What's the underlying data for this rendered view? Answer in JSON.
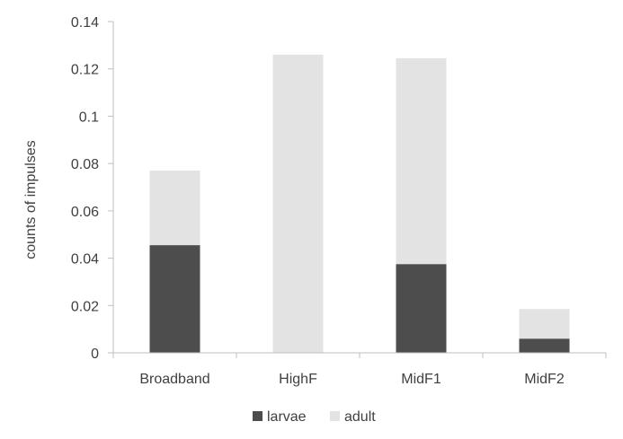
{
  "chart_data": {
    "type": "bar",
    "stacked": true,
    "categories": [
      "Broadband",
      "HighF",
      "MidF1",
      "MidF2"
    ],
    "series": [
      {
        "name": "larvae",
        "values": [
          0.0455,
          0.0,
          0.0375,
          0.006
        ],
        "color": "#4d4d4d"
      },
      {
        "name": "adult",
        "values": [
          0.0315,
          0.126,
          0.087,
          0.0125
        ],
        "color": "#e3e3e3"
      }
    ],
    "ylabel": "counts  of impulses",
    "xlabel": "",
    "ylim": [
      0,
      0.14
    ],
    "yticks": [
      0,
      0.02,
      0.04,
      0.06,
      0.08,
      0.1,
      0.12,
      0.14
    ],
    "ytick_labels": [
      "0",
      "0.02",
      "0.04",
      "0.06",
      "0.08",
      "0.1",
      "0.12",
      "0.14"
    ],
    "grid": false,
    "legend_position": "bottom"
  },
  "colors": {
    "axis": "#bfbfbf",
    "text": "#404040"
  }
}
